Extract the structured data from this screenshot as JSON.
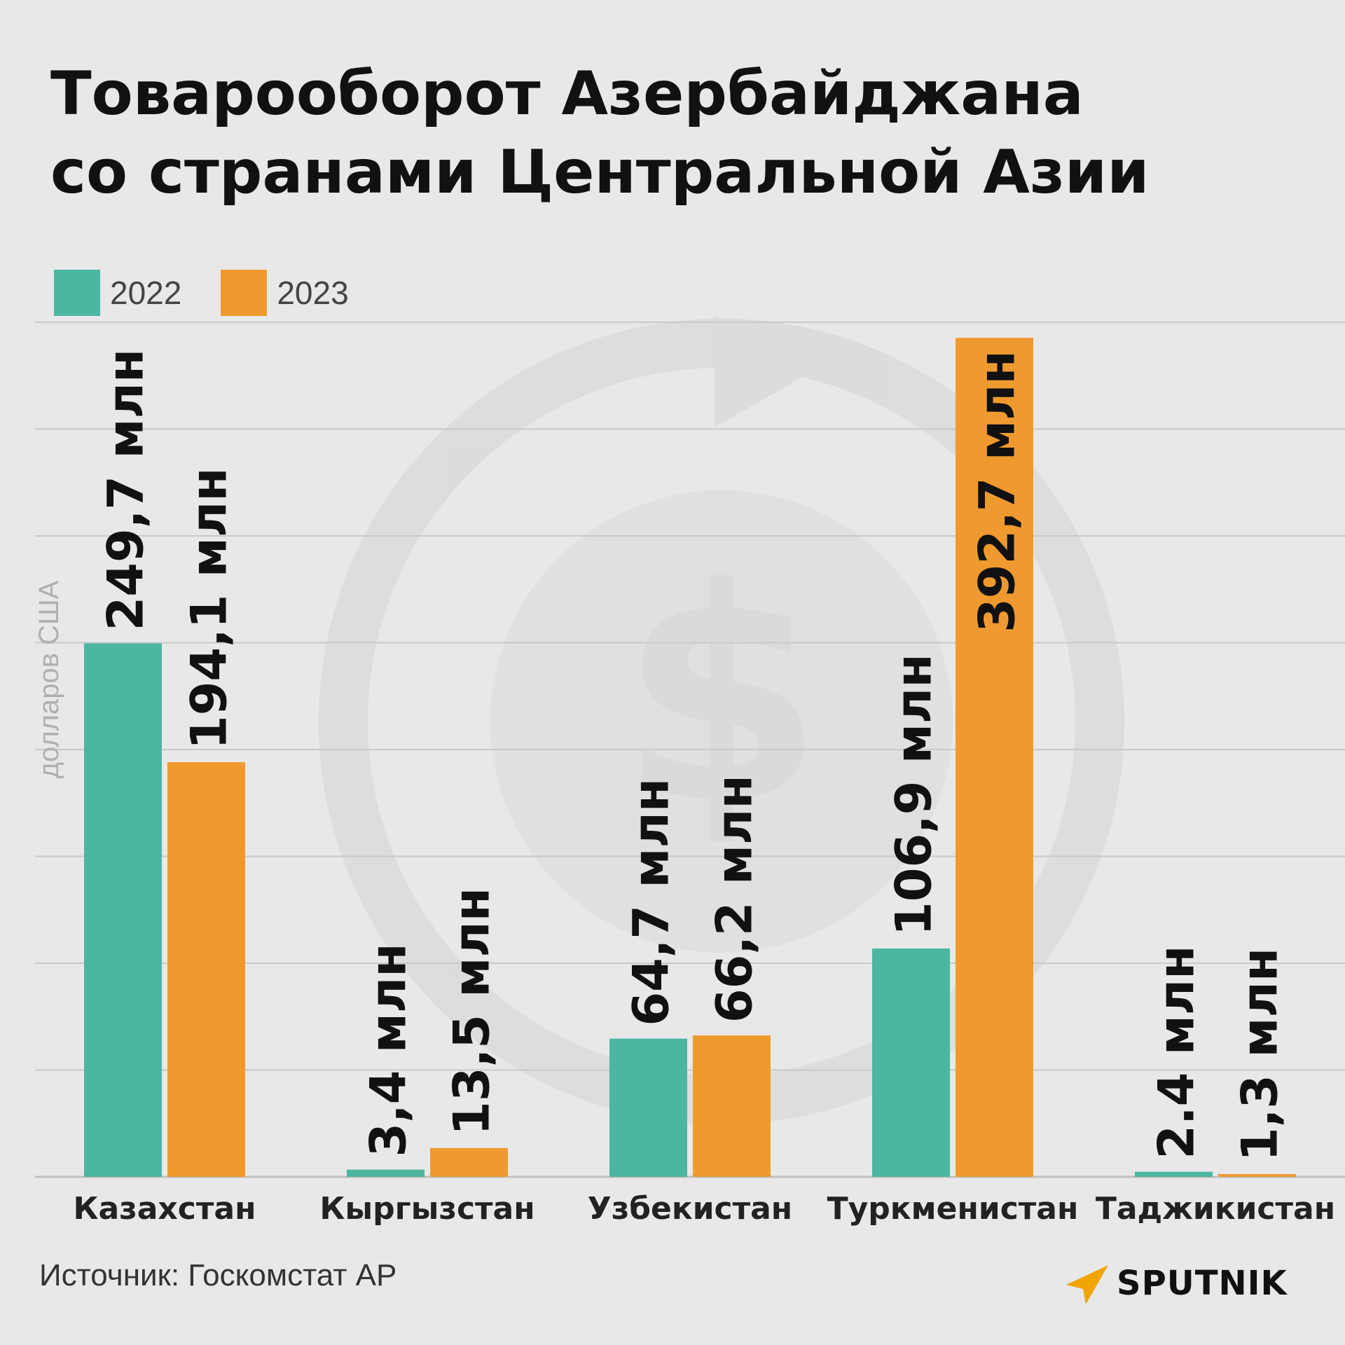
{
  "title_lines": [
    "Товарооборот Азербайджана",
    "со странами Центральной Азии"
  ],
  "source": "Источник: Госкомстат АР",
  "brand": "SPUTNIK",
  "colors": {
    "s2022": "#4db6a0",
    "s2023": "#ef9a2f",
    "grid": "#c9c9c9",
    "axis": "#bfbfbf",
    "watermark": "#d5d5d5"
  },
  "icons": {
    "watermark": "dollar-arrow-circle-icon",
    "logo": "sputnik-logo-icon"
  },
  "chart_data": {
    "type": "bar",
    "title": "Товарооборот Азербайджана со странами Центральной Азии",
    "xlabel": "",
    "ylabel": "долларов США",
    "categories": [
      "Казахстан",
      "Кыргызстан",
      "Узбекистан",
      "Туркменистан",
      "Таджикистан"
    ],
    "series": [
      {
        "name": "2022",
        "values": [
          249.7,
          3.4,
          64.7,
          106.9,
          2.4
        ],
        "labels": [
          "249,7 млн",
          "3,4 млн",
          "64,7 млн",
          "106,9 млн",
          "2.4 млн"
        ]
      },
      {
        "name": "2023",
        "values": [
          194.1,
          13.5,
          66.2,
          392.7,
          1.3
        ],
        "labels": [
          "194,1 млн",
          "13,5 млн",
          "66,2 млн",
          "392,7 млн",
          "1,3 млн"
        ]
      }
    ],
    "ylim": [
      0,
      400
    ],
    "grid": true,
    "legend": "top-left"
  }
}
